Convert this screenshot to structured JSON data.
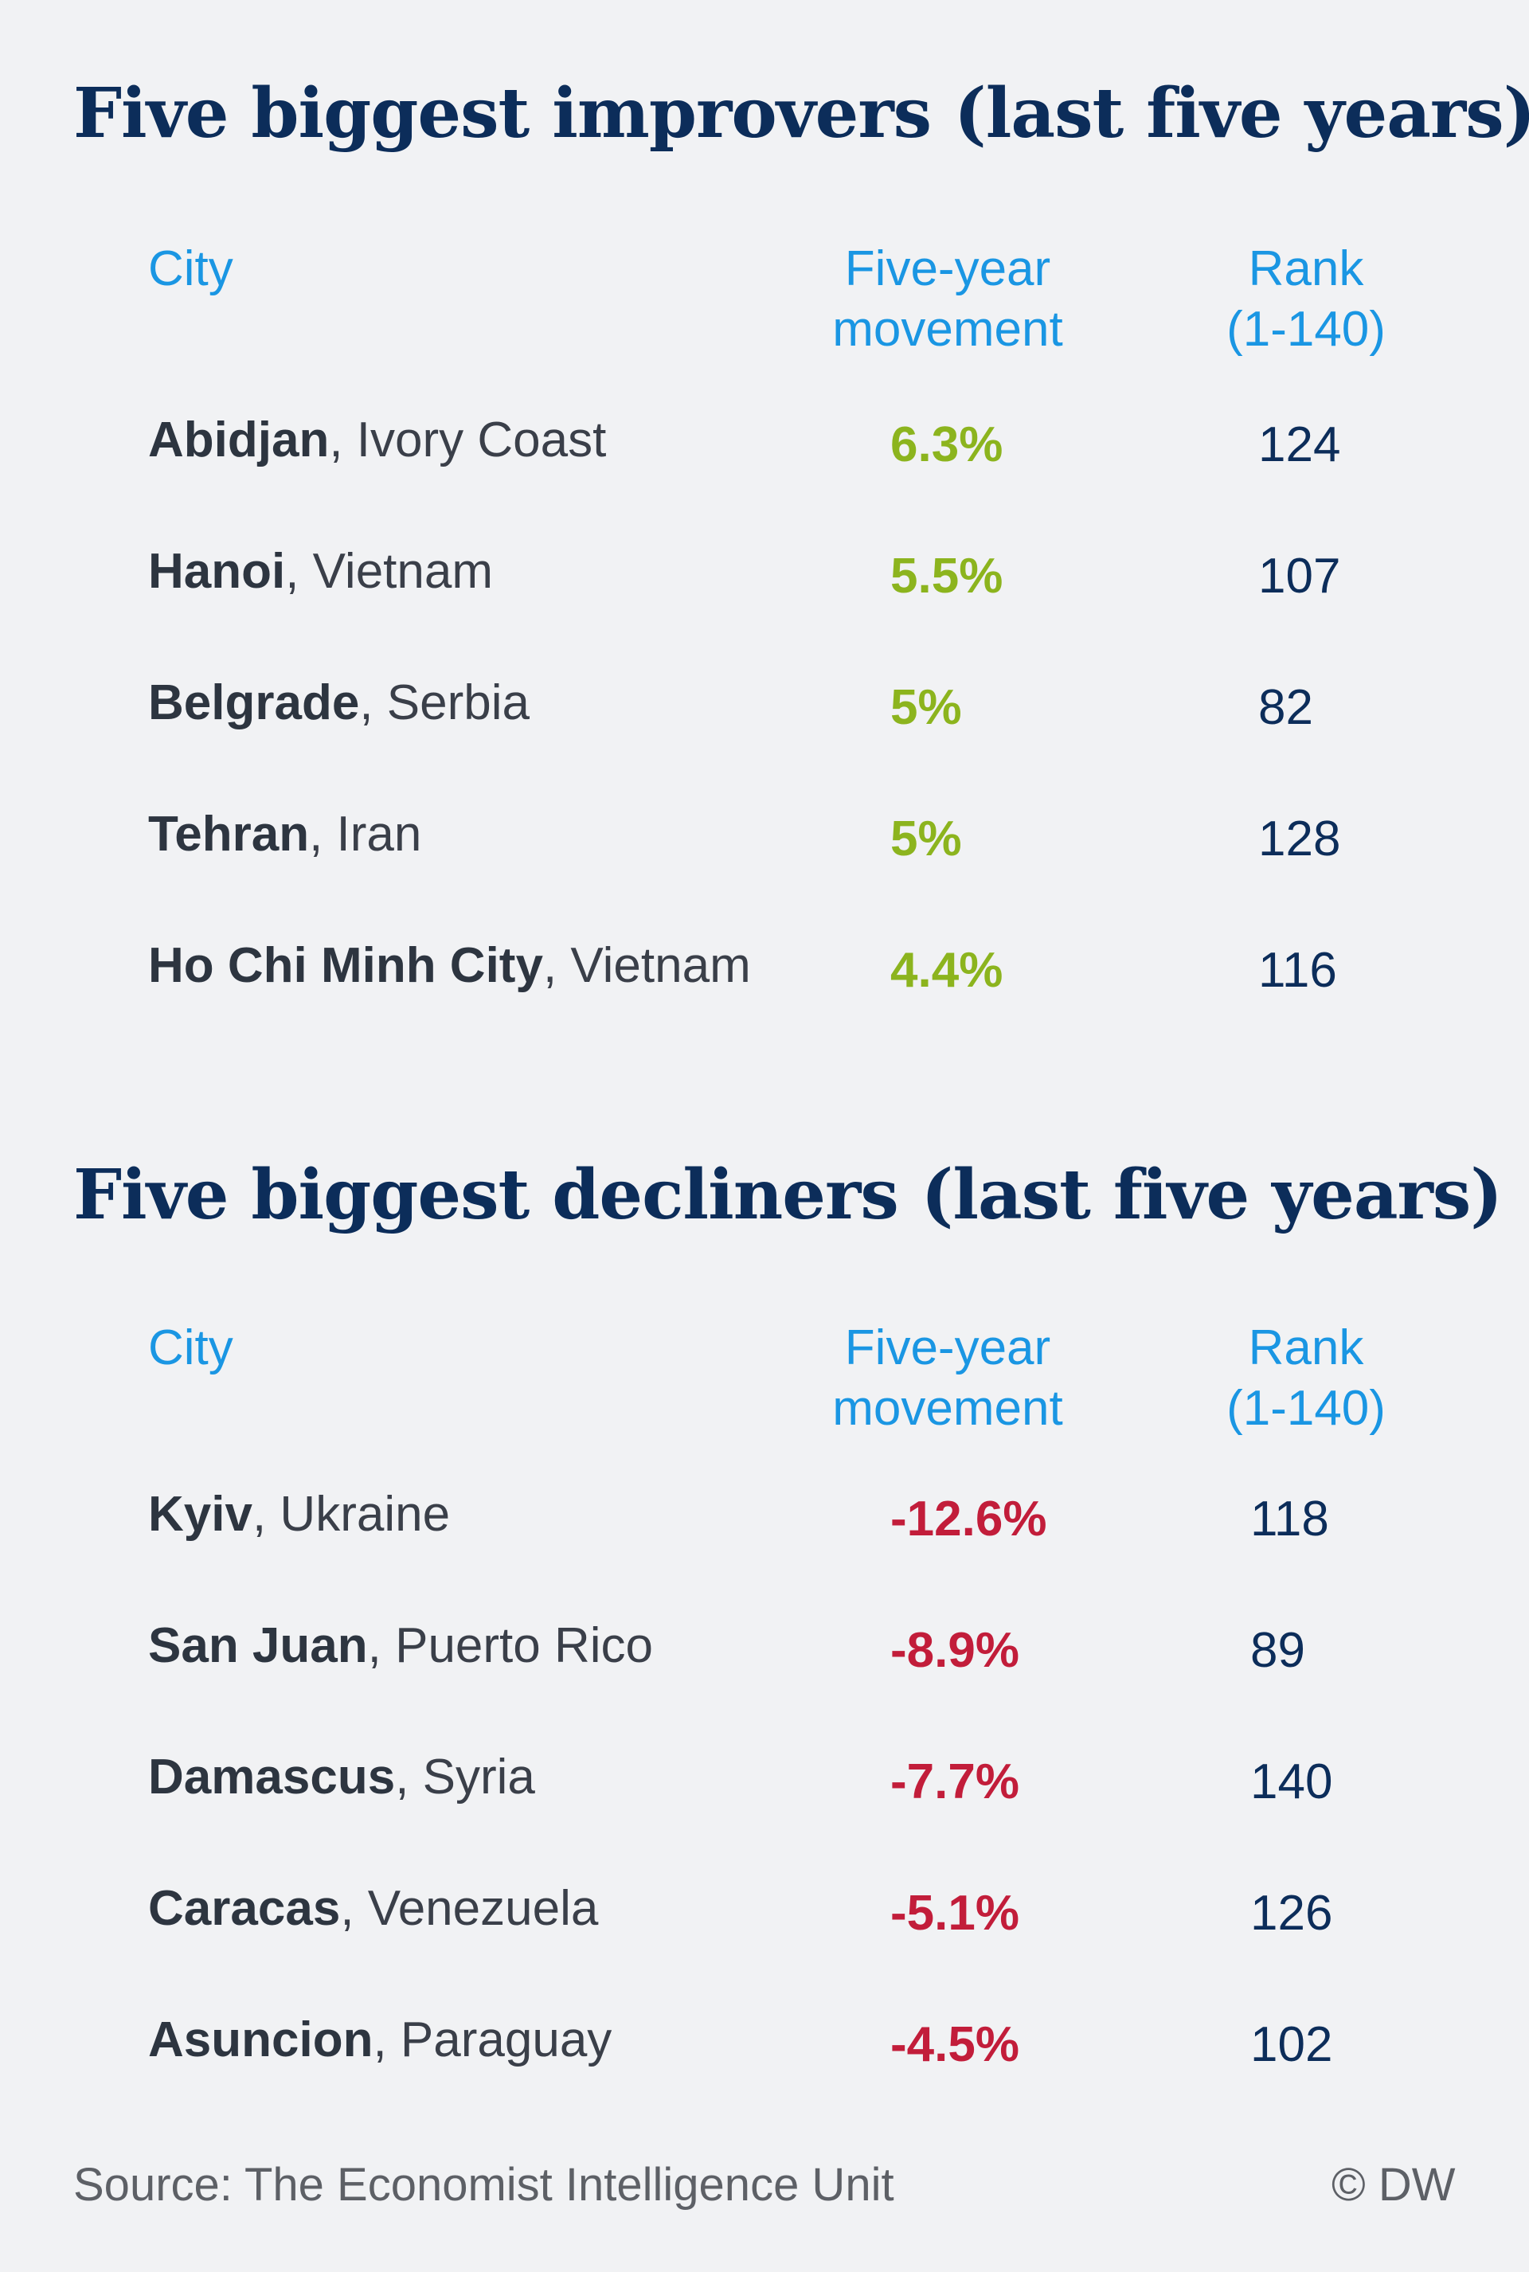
{
  "chart_data": [
    {
      "type": "table",
      "title": "Five biggest improvers (last five years)",
      "columns": [
        "City",
        "Five-year movement",
        "Rank (1-140)"
      ],
      "rows": [
        {
          "city": "Abidjan",
          "country": "Ivory Coast",
          "movement": "6.3%",
          "rank": "124"
        },
        {
          "city": "Hanoi",
          "country": "Vietnam",
          "movement": "5.5%",
          "rank": "107"
        },
        {
          "city": "Belgrade",
          "country": "Serbia",
          "movement": "5%",
          "rank": "82"
        },
        {
          "city": "Tehran",
          "country": "Iran",
          "movement": "5%",
          "rank": "128"
        },
        {
          "city": "Ho Chi Minh City",
          "country": "Vietnam",
          "movement": "4.4%",
          "rank": "116"
        }
      ]
    },
    {
      "type": "table",
      "title": "Five biggest decliners (last five years)",
      "columns": [
        "City",
        "Five-year movement",
        "Rank (1-140)"
      ],
      "rows": [
        {
          "city": "Kyiv",
          "country": "Ukraine",
          "movement": "-12.6%",
          "rank": "118"
        },
        {
          "city": "San Juan",
          "country": "Puerto Rico",
          "movement": "-8.9%",
          "rank": "89"
        },
        {
          "city": "Damascus",
          "country": "Syria",
          "movement": "-7.7%",
          "rank": "140"
        },
        {
          "city": "Caracas",
          "country": "Venezuela",
          "movement": "-5.1%",
          "rank": "126"
        },
        {
          "city": "Asuncion",
          "country": "Paraguay",
          "movement": "-4.5%",
          "rank": "102"
        }
      ]
    }
  ],
  "headers": {
    "city": "City",
    "movement": "Five-year\nmovement",
    "rank": "Rank\n(1-140)"
  },
  "footer": {
    "source": "Source: The Economist Intelligence Unit",
    "credit": "© DW"
  },
  "colors": {
    "background": "#f1f2f4",
    "title": "#0c2d5a",
    "header": "#1a96e3",
    "positive": "#8cb41e",
    "negative": "#c21d3a"
  }
}
